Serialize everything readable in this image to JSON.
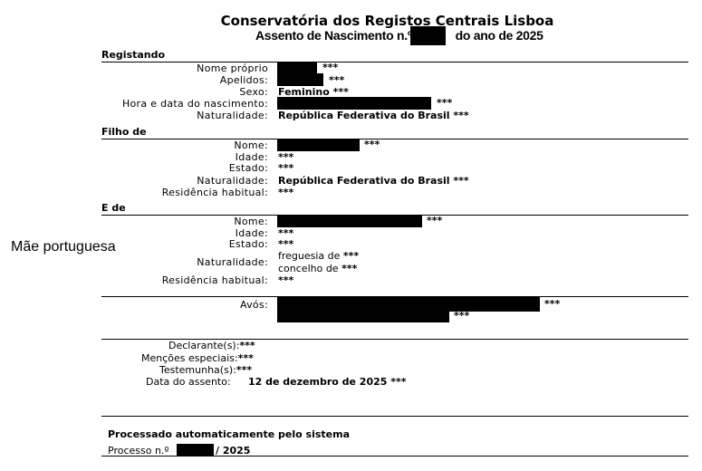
{
  "header": {
    "title": "Conservatória dos Registos Centrais Lisboa",
    "subtitle_prefix": "Assento de Nascimento n.º",
    "subtitle_suffix": "do ano de 2025"
  },
  "side_note": "Mãe portuguesa",
  "mask": "***",
  "registando": {
    "heading": "Registando",
    "nome_label": "Nome próprio",
    "apelidos_label": "Apelidos:",
    "sexo_label": "Sexo:",
    "sexo": "Feminino",
    "hora_label": "Hora e data do nascimento:",
    "naturalidade_label": "Naturalidade:",
    "naturalidade": "República Federativa do Brasil"
  },
  "filho": {
    "heading": "Filho de",
    "nome_label": "Nome:",
    "idade_label": "Idade:",
    "estado_label": "Estado:",
    "naturalidade_label": "Naturalidade:",
    "naturalidade": "República Federativa do Brasil",
    "residencia_label": "Residência habitual:"
  },
  "ede": {
    "heading": "E de",
    "nome_label": "Nome:",
    "idade_label": "Idade:",
    "estado_label": "Estado:",
    "naturalidade_label": "Naturalidade:",
    "freguesia": "freguesia de",
    "concelho": "concelho de",
    "residencia_label": "Residência habitual:"
  },
  "avos": {
    "label": "Avós:"
  },
  "final": {
    "declarante_label": "Declarante(s):",
    "mencoes_label": "Menções especiais:",
    "testemunha_label": "Testemunha(s):",
    "data_label": "Data do assento:",
    "data": "12 de dezembro de 2025"
  },
  "footer": {
    "processado": "Processado automaticamente pelo sistema",
    "processo_prefix": "Processo n.º",
    "processo_suffix": "/ 2025"
  }
}
